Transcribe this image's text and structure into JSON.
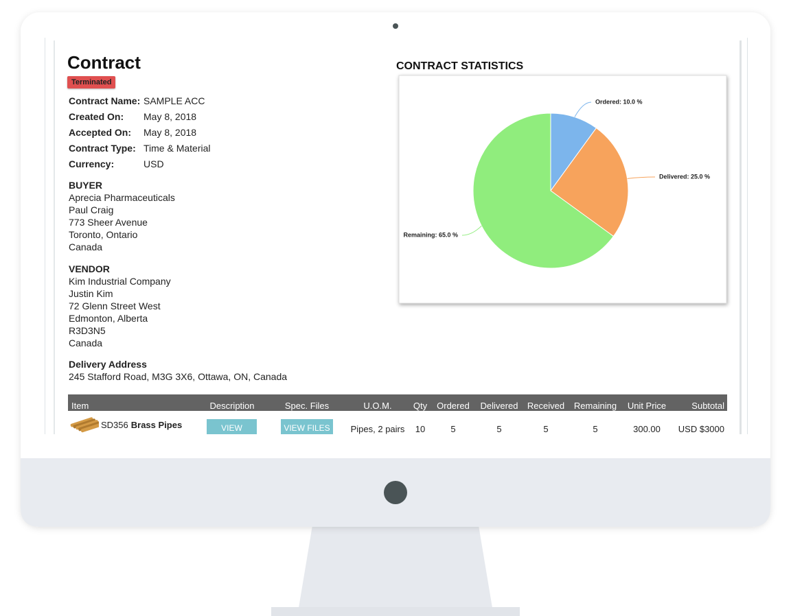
{
  "header": {
    "title": "Contract",
    "status": "Terminated"
  },
  "details": [
    {
      "label": "Contract Name:",
      "value": "SAMPLE ACC"
    },
    {
      "label": "Created On:",
      "value": "May 8, 2018"
    },
    {
      "label": "Accepted On:",
      "value": "May 8, 2018"
    },
    {
      "label": "Contract Type:",
      "value": "Time & Material"
    },
    {
      "label": "Currency:",
      "value": "USD"
    }
  ],
  "buyer": {
    "heading": "BUYER",
    "lines": [
      "Aprecia Pharmaceuticals",
      "Paul Craig",
      "773 Sheer Avenue",
      "Toronto, Ontario",
      "Canada"
    ]
  },
  "vendor": {
    "heading": "VENDOR",
    "lines": [
      "Kim Industrial Company",
      "Justin Kim",
      "72 Glenn Street West",
      "Edmonton, Alberta",
      "R3D3N5",
      "Canada"
    ]
  },
  "delivery": {
    "heading": "Delivery Address",
    "address": "245 Stafford Road, M3G 3X6, Ottawa, ON, Canada"
  },
  "chart_data": {
    "type": "pie",
    "title": "CONTRACT STATISTICS",
    "values": [
      10,
      25,
      65
    ],
    "value_labels": [
      "Ordered: 10.0 %",
      "Delivered: 25.0 %",
      "Remaining: 65.0 %"
    ],
    "colors": [
      "#7cb5ec",
      "#f7a35c",
      "#90ed7d"
    ]
  },
  "table": {
    "columns": [
      "Item",
      "Description",
      "Spec. Files",
      "U.O.M.",
      "Qty",
      "Ordered",
      "Delivered",
      "Received",
      "Remaining",
      "Unit Price",
      "Subtotal"
    ],
    "rows": [
      {
        "item_code": "SD356",
        "item_name": "Brass Pipes",
        "cells": [
          "VIEW",
          "VIEW FILES",
          "Pipes, 2 pairs",
          "10",
          "5",
          "5",
          "5",
          "5",
          "300.00",
          "USD $3000"
        ]
      }
    ]
  }
}
